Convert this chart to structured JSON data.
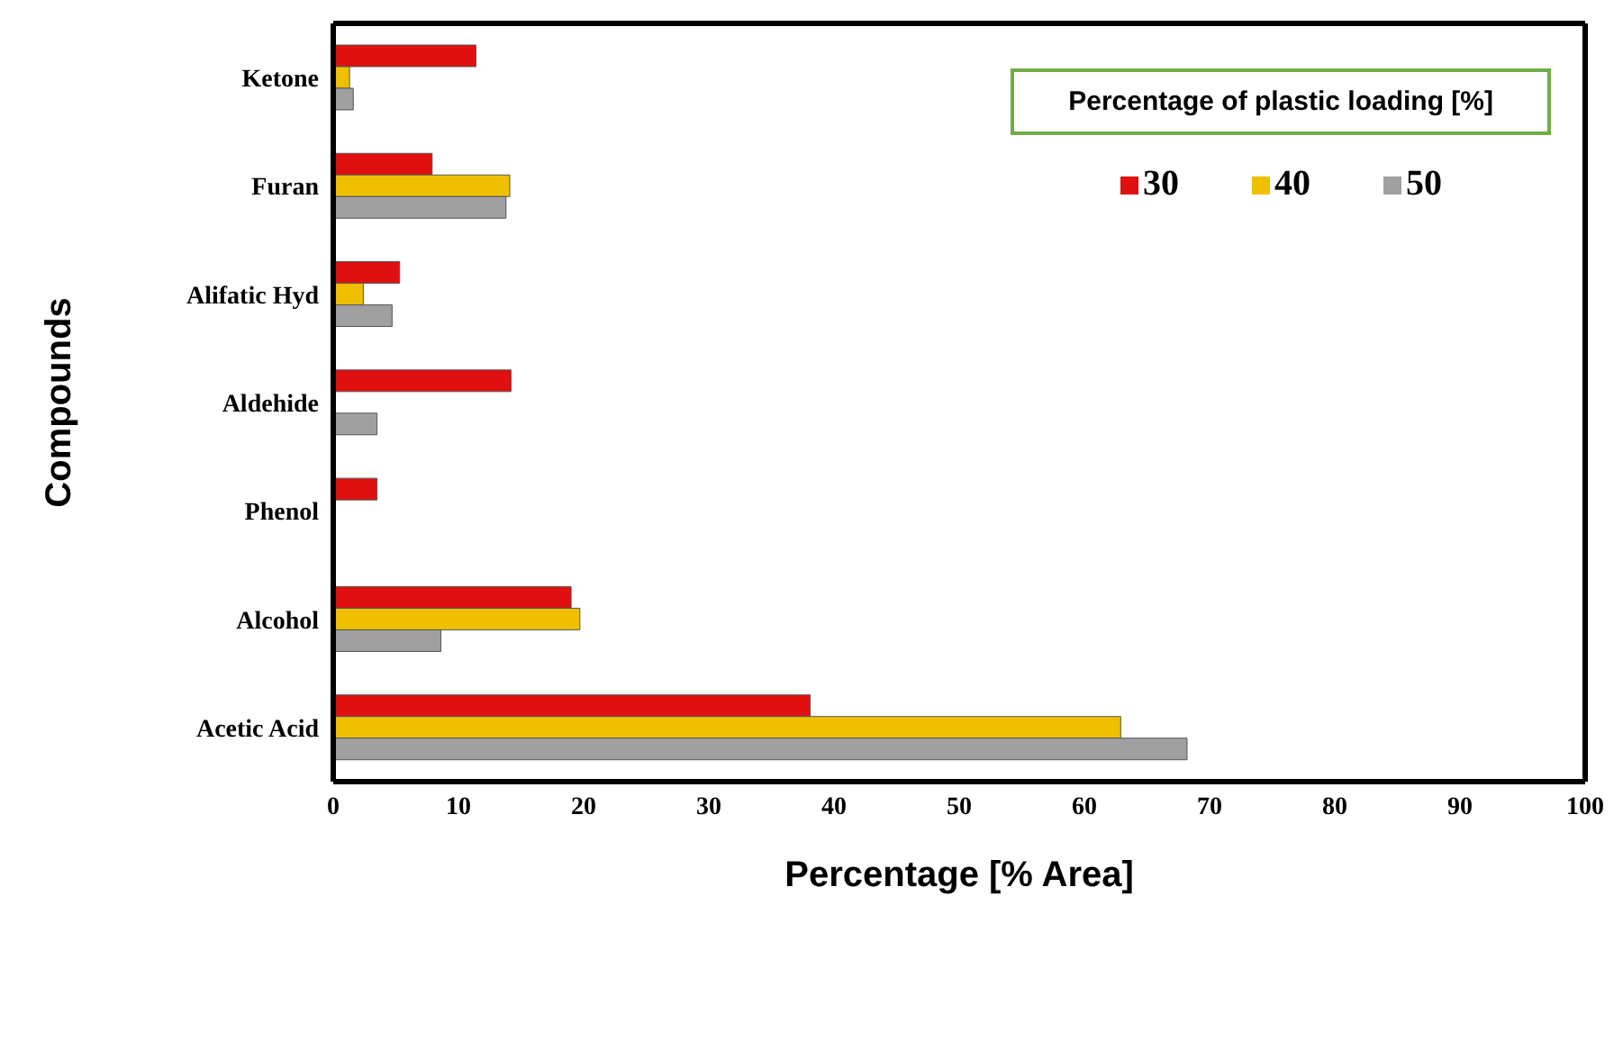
{
  "chart_data": {
    "type": "bar",
    "orientation": "horizontal",
    "xlabel": "Percentage [% Area]",
    "ylabel": "Compounds",
    "legend_title": "Percentage of plastic loading [%]",
    "legend": "top right",
    "categories": [
      "Ketone",
      "Furan",
      "Alifatic Hyd",
      "Aldehide",
      "Phenol",
      "Alcohol",
      "Acetic Acid"
    ],
    "xlim": [
      0,
      100
    ],
    "xticks": [
      0,
      10,
      20,
      30,
      40,
      50,
      60,
      70,
      80,
      90,
      100
    ],
    "series": [
      {
        "name": "30",
        "color": "#e01010",
        "values": [
          11.4,
          7.9,
          5.3,
          14.2,
          3.5,
          19.0,
          38.1
        ]
      },
      {
        "name": "40",
        "color": "#f0c000",
        "values": [
          1.3,
          14.1,
          2.4,
          null,
          null,
          19.7,
          62.9
        ]
      },
      {
        "name": "50",
        "color": "#a0a0a0",
        "values": [
          1.6,
          13.8,
          4.7,
          3.5,
          null,
          8.6,
          68.2
        ]
      }
    ]
  }
}
